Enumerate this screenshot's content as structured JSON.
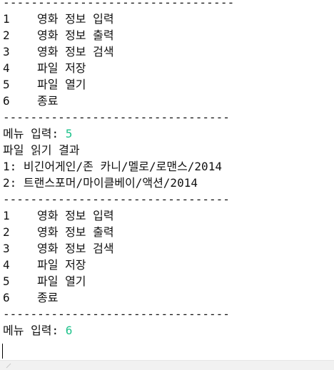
{
  "console": {
    "separator": "---------------------------------",
    "menu": [
      {
        "num": "1",
        "label": "영화 정보 입력"
      },
      {
        "num": "2",
        "label": "영화 정보 출력"
      },
      {
        "num": "3",
        "label": "영화 정보 검색"
      },
      {
        "num": "4",
        "label": "파일 저장"
      },
      {
        "num": "5",
        "label": "파일 열기"
      },
      {
        "num": "6",
        "label": "종료"
      }
    ],
    "prompt": "메뉴 입력: ",
    "first_input": "5",
    "read_result_header": "파일 읽기 결과",
    "read_results": [
      "1: 비긴어게인/존 카니/멜로/로맨스/2014",
      "2: 트랜스포머/마이클베이/액션/2014"
    ],
    "second_input": "6"
  },
  "colors": {
    "input_text": "#1ec28b",
    "text": "#111111"
  },
  "icons": {
    "scrollbar_grip": "diagonal-grip-icon"
  }
}
